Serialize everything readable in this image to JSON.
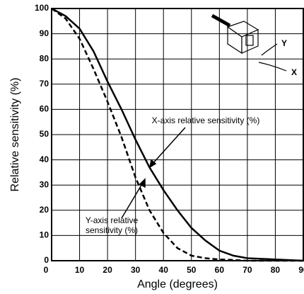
{
  "chart_data": {
    "type": "line",
    "xlabel": "Angle (degrees)",
    "ylabel": "Relative sensitivity (%)",
    "x": [
      0,
      5,
      10,
      15,
      20,
      25,
      30,
      35,
      40,
      45,
      50,
      55,
      60,
      65,
      70,
      80,
      90
    ],
    "series": [
      {
        "color": "#000000",
        "dash": false,
        "values": [
          100,
          97,
          92,
          83,
          71,
          60,
          48,
          37,
          28,
          20,
          13,
          8,
          4,
          2,
          1,
          0.5,
          0
        ]
      },
      {
        "color": "#000000",
        "dash": true,
        "values": [
          100,
          96,
          88,
          76,
          63,
          49,
          33,
          20,
          11,
          5,
          2,
          1,
          0.5,
          0.3,
          0,
          0,
          0
        ]
      }
    ],
    "annotations": [
      {
        "lines": [
          "X-axis relative sensitivity (%)"
        ]
      },
      {
        "lines": [
          "Y-axis relative",
          "sensitivity (%)"
        ]
      }
    ],
    "icon_labels": [
      "Y",
      "X"
    ],
    "xlim": [
      0,
      90
    ],
    "ylim": [
      0,
      100
    ],
    "xticks": [
      0,
      10,
      20,
      30,
      40,
      50,
      60,
      70,
      80,
      90
    ],
    "yticks": [
      0,
      10,
      20,
      30,
      40,
      50,
      60,
      70,
      80,
      90,
      100
    ],
    "grid": true
  }
}
